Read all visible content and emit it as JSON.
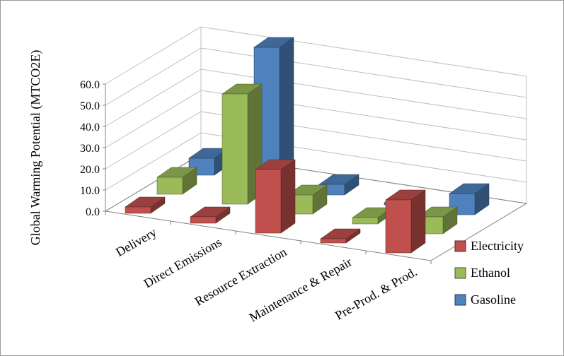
{
  "chart_data": {
    "type": "bar",
    "projection": "3d",
    "title": "",
    "ylabel": "Global Warming Potential (MTCO2E)",
    "xlabel": "",
    "categories": [
      "Delivery",
      "Direct Emissions",
      "Resource Extraction",
      "Maintenance & Repair",
      "Pre-Prod. & Prod."
    ],
    "series": [
      {
        "name": "Electricity",
        "color": "#C0504D",
        "values": [
          3,
          3,
          30,
          2,
          25
        ]
      },
      {
        "name": "Ethanol",
        "color": "#9BBB59",
        "values": [
          8,
          52,
          9,
          3,
          8
        ]
      },
      {
        "name": "Gasoline",
        "color": "#4F81BD",
        "values": [
          8,
          65,
          5,
          1,
          10
        ]
      }
    ],
    "ylim": [
      0,
      60
    ],
    "ytick_interval": 10,
    "ytick_labels": [
      "0.0",
      "10.0",
      "20.0",
      "30.0",
      "40.0",
      "50.0",
      "60.0"
    ],
    "legend_position": "right",
    "grid": true
  },
  "colors": {
    "grid": "#BFBFBF",
    "axis": "#808080",
    "background": "#FFFFFF",
    "text": "#000000"
  }
}
